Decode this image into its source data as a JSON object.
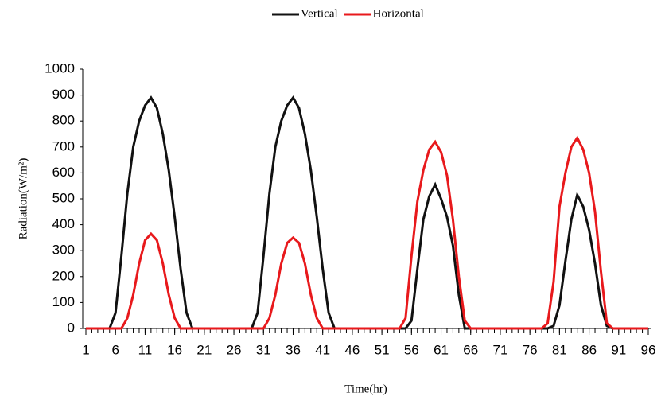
{
  "chart_data": {
    "type": "line",
    "x_label": "Time(hr)",
    "y_label": "Radiation(W/m²)",
    "x": [
      1,
      2,
      3,
      4,
      5,
      6,
      7,
      8,
      9,
      10,
      11,
      12,
      13,
      14,
      15,
      16,
      17,
      18,
      19,
      20,
      21,
      22,
      23,
      24,
      25,
      26,
      27,
      28,
      29,
      30,
      31,
      32,
      33,
      34,
      35,
      36,
      37,
      38,
      39,
      40,
      41,
      42,
      43,
      44,
      45,
      46,
      47,
      48,
      49,
      50,
      51,
      52,
      53,
      54,
      55,
      56,
      57,
      58,
      59,
      60,
      61,
      62,
      63,
      64,
      65,
      66,
      67,
      68,
      69,
      70,
      71,
      72,
      73,
      74,
      75,
      76,
      77,
      78,
      79,
      80,
      81,
      82,
      83,
      84,
      85,
      86,
      87,
      88,
      89,
      90,
      91,
      92,
      93,
      94,
      95,
      96
    ],
    "series": [
      {
        "name": "Vertical",
        "color": "#111111",
        "values": [
          0,
          0,
          0,
          0,
          0,
          60,
          280,
          520,
          700,
          800,
          860,
          890,
          850,
          750,
          610,
          430,
          230,
          60,
          0,
          0,
          0,
          0,
          0,
          0,
          0,
          0,
          0,
          0,
          0,
          60,
          280,
          520,
          700,
          800,
          860,
          890,
          850,
          750,
          610,
          430,
          230,
          60,
          0,
          0,
          0,
          0,
          0,
          0,
          0,
          0,
          0,
          0,
          0,
          0,
          0,
          30,
          230,
          420,
          510,
          555,
          500,
          430,
          320,
          130,
          0,
          0,
          0,
          0,
          0,
          0,
          0,
          0,
          0,
          0,
          0,
          0,
          0,
          0,
          0,
          10,
          90,
          260,
          420,
          515,
          470,
          380,
          250,
          90,
          10,
          0,
          0,
          0,
          0,
          0,
          0,
          0
        ]
      },
      {
        "name": "Horizontal",
        "color": "#e8191c",
        "values": [
          0,
          0,
          0,
          0,
          0,
          0,
          0,
          40,
          130,
          250,
          340,
          365,
          340,
          250,
          130,
          40,
          0,
          0,
          0,
          0,
          0,
          0,
          0,
          0,
          0,
          0,
          0,
          0,
          0,
          0,
          0,
          40,
          130,
          250,
          330,
          350,
          330,
          250,
          130,
          40,
          0,
          0,
          0,
          0,
          0,
          0,
          0,
          0,
          0,
          0,
          0,
          0,
          0,
          0,
          40,
          280,
          490,
          610,
          690,
          720,
          680,
          590,
          420,
          200,
          30,
          0,
          0,
          0,
          0,
          0,
          0,
          0,
          0,
          0,
          0,
          0,
          0,
          0,
          20,
          180,
          470,
          600,
          700,
          735,
          690,
          600,
          450,
          220,
          20,
          0,
          0,
          0,
          0,
          0,
          0,
          0
        ]
      }
    ],
    "xlim": [
      1,
      96
    ],
    "xticks": [
      1,
      6,
      11,
      16,
      21,
      26,
      31,
      36,
      41,
      46,
      51,
      56,
      61,
      66,
      71,
      76,
      81,
      86,
      91,
      96
    ],
    "ylim": [
      0,
      1000
    ],
    "yticks": [
      0,
      100,
      200,
      300,
      400,
      500,
      600,
      700,
      800,
      900,
      1000
    ],
    "legend": "top"
  }
}
